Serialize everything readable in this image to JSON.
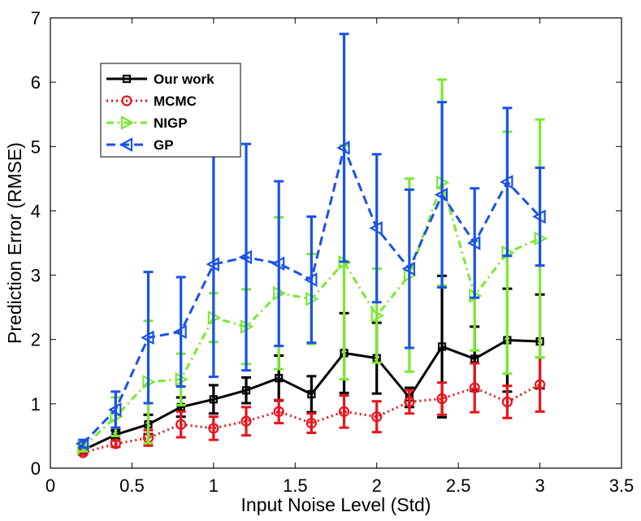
{
  "chart_data": {
    "type": "line",
    "title": "",
    "xlabel": "Input Noise Level (Std)",
    "ylabel": "Prediction Error (RMSE)",
    "xlim": [
      0,
      3.5
    ],
    "ylim": [
      0,
      7
    ],
    "xticks": [
      0,
      0.5,
      1,
      1.5,
      2,
      2.5,
      3,
      3.5
    ],
    "xtick_labels": [
      "0",
      "0.5",
      "1",
      "1.5",
      "2",
      "2.5",
      "3",
      "3.5"
    ],
    "yticks": [
      0,
      1,
      2,
      3,
      4,
      5,
      6,
      7
    ],
    "ytick_labels": [
      "0",
      "1",
      "2",
      "3",
      "4",
      "5",
      "6",
      "7"
    ],
    "grid": false,
    "legend_position": "top-left",
    "x": [
      0.2,
      0.4,
      0.6,
      0.8,
      1.0,
      1.2,
      1.4,
      1.6,
      1.8,
      2.0,
      2.2,
      2.4,
      2.6,
      2.8,
      3.0
    ],
    "series": [
      {
        "name": "Our work",
        "color": "#000000",
        "dash": "solid",
        "marker": "square",
        "values": [
          0.28,
          0.52,
          0.68,
          0.95,
          1.07,
          1.21,
          1.4,
          1.15,
          1.79,
          1.71,
          1.1,
          1.89,
          1.7,
          1.99,
          1.97
        ],
        "errors": [
          0.04,
          0.07,
          0.15,
          0.15,
          0.22,
          0.2,
          0.35,
          0.28,
          0.62,
          0.55,
          0.15,
          1.1,
          0.5,
          0.8,
          0.73
        ]
      },
      {
        "name": "MCMC",
        "color": "#e8141b",
        "dash": "dotted",
        "marker": "circle",
        "values": [
          0.24,
          0.38,
          0.47,
          0.68,
          0.62,
          0.73,
          0.88,
          0.7,
          0.88,
          0.8,
          1.03,
          1.08,
          1.25,
          1.03,
          1.3
        ],
        "errors": [
          0.03,
          0.05,
          0.12,
          0.2,
          0.18,
          0.22,
          0.18,
          0.15,
          0.25,
          0.24,
          0.18,
          0.25,
          0.38,
          0.25,
          0.42
        ]
      },
      {
        "name": "NIGP",
        "color": "#7be830",
        "dash": "dash-dot",
        "marker": "triangle-right",
        "values": [
          0.32,
          0.8,
          1.34,
          1.38,
          2.34,
          2.2,
          2.72,
          2.63,
          3.2,
          2.37,
          3.0,
          4.44,
          2.68,
          3.35,
          3.57
        ],
        "errors": [
          0.06,
          0.3,
          0.95,
          0.4,
          0.38,
          0.58,
          1.18,
          0.7,
          1.82,
          0.73,
          1.5,
          1.6,
          0.85,
          1.88,
          1.85
        ]
      },
      {
        "name": "GP",
        "color": "#1a52e8",
        "dash": "dashed",
        "marker": "triangle-left",
        "values": [
          0.38,
          0.91,
          2.03,
          2.12,
          3.17,
          3.28,
          3.18,
          2.93,
          4.98,
          3.73,
          3.1,
          4.25,
          3.5,
          4.45,
          3.91
        ],
        "errors": [
          0.06,
          0.28,
          1.02,
          0.85,
          1.75,
          1.76,
          1.28,
          0.98,
          1.77,
          1.15,
          1.23,
          1.44,
          0.85,
          1.15,
          0.76
        ]
      }
    ]
  }
}
